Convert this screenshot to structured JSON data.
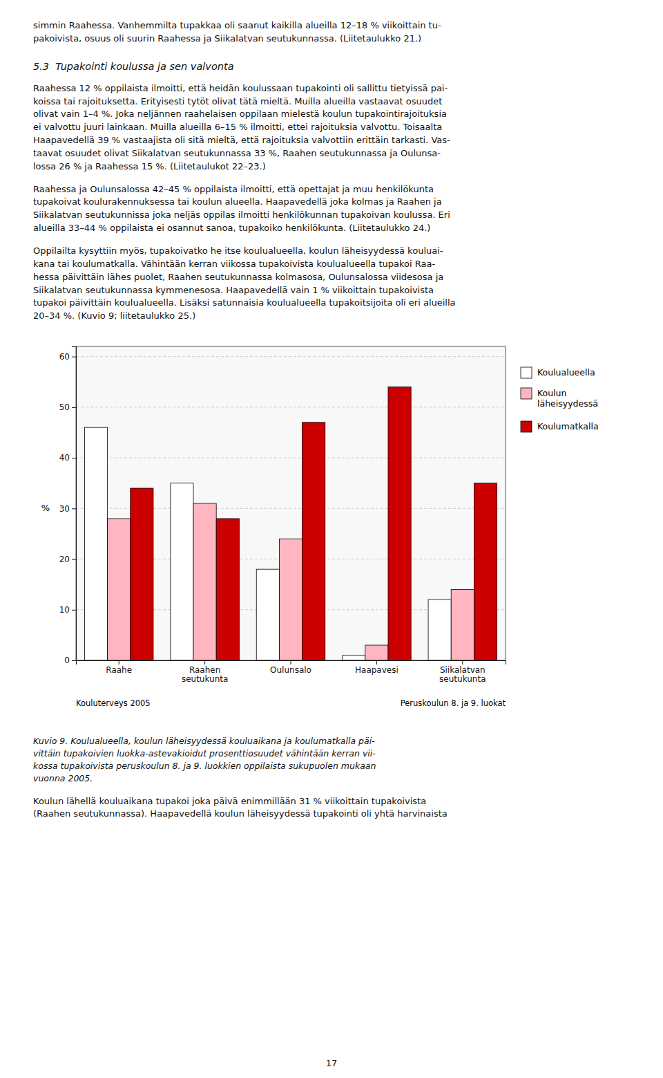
{
  "chart_data": {
    "type": "bar",
    "categories": [
      "Raahe",
      "Raahen\nseutukunta",
      "Oulunsalo",
      "Haapavesi",
      "Siikalatvan\nseutukunta"
    ],
    "series": [
      {
        "name": "Koulualueella",
        "color": "#ffffff",
        "values": [
          46,
          35,
          18,
          1,
          12
        ]
      },
      {
        "name": "Koulun\nläheisyydessä",
        "color": "#ffb6c1",
        "values": [
          28,
          31,
          24,
          3,
          14
        ]
      },
      {
        "name": "Koulumatkalla",
        "color": "#cc0000",
        "values": [
          34,
          28,
          47,
          54,
          35
        ]
      }
    ],
    "ylabel": "%",
    "ylim": [
      0,
      62
    ],
    "yticks": [
      0,
      10,
      20,
      30,
      40,
      50,
      60
    ],
    "grid": true,
    "legend": "upper right",
    "annotations": [
      "Kouluterveys 2005",
      "Peruskoulun 8. ja 9. luokat"
    ],
    "caption": "Kuvio 9. Koulualueella, koulun läheisyydessä kouluaikana ja koulumatkalla päi-\nvittäin tupakoivien luokka-astevakioidut prosenttiosuudet vähintään kerran vii-\nkossa tupakoivista peruskoulun 8. ja 9. luokkien oppilaista sukupuolen mukaan\nvuonna 2005."
  },
  "page_text": {
    "text_above_1": "simmin Raahessa. Vanhemmilta tupakkaa oli saanut kaikilla alueilla 12–18 % viikoittain tu-\npakoivista, osuus oli suurin Raahessa ja Siikalatvan seutukunnassa. (Liitetaulukko 21.)",
    "section_title": "5.3  Tupakointi koulussa ja sen valvonta",
    "para1": "Raahessa 12 % oppilaista ilmoitti, että heidän koulussaan tupakointi oli sallittu tietyissä pai-\nkoissa tai rajoituksetta. Erityisesti tytöt olivat tätä mieltä. Muilla alueilla vastaavat osuudet\nolivat vain 1–4 %. Joka neljännen raahelaisen oppilaan mielestä koulun tupakointirajoituksia\nei valvottu juuri lainkaan. Muilla alueilla 6–15 % ilmoitti, ettei rajoituksia valvottu. Toisaalta\nHaapavedellä 39 % vastaajista oli sitä mieltä, että rajoituksia valvottiin erittäin tarkasti. Vas-\ntaavat osuudet olivat Siikalatvan seutukunnassa 33 %, Raahen seutukunnassa ja Oulunsa-\nlossa 26 % ja Raahessa 15 %. (Liitetaulukot 22–23.)",
    "para2": "Raahessa ja Oulunsalossa 42–45 % oppilaista ilmoitti, että opettajat ja muu henkilökunta\ntupakoivat koulurakennuksessa tai koulun alueella. Haapavedellä joka kolmas ja Raahen ja\nSiikalatvan seutukunnissa joka neljäs oppilas ilmoitti henkilökunnan tupakoivan koulussa. Eri\nalueilla 33–44 % oppilaista ei osannut sanoa, tupakoiko henkilökunta. (Liitetaulukko 24.)",
    "para3": "Oppilailta kysyttiin myös, tupakoivatko he itse koulualueella, koulun läheisyydessä kouluai-\nkana tai koulumatkalla. Vähintään kerran viikossa tupakoivista koulualueella tupakoi Raa-\nhessa päivittäin lähes puolet, Raahen seutukunnassa kolmasosa, Oulunsalossa viidesosa ja\nSiikalatvan seutukunnassa kymmenesosa. Haapavedellä vain 1 % viikoittain tupakoivista\ntupakoi päivittäin koulualueella. Lisäksi satunnaisia koulualueella tupakoitsijoita oli eri alueilla\n20–34 %. (Kuvio 9; liitetaulukko 25.)",
    "text_below_1": "Koulun lähellä kouluaikana tupakoi joka päivä enimmillään 31 % viikoittain tupakoivista\n(Raahen seutukunnassa). Haapavedellä koulun läheisyydessä tupakointi oli yhtä harvinaista",
    "page_number": "17"
  }
}
